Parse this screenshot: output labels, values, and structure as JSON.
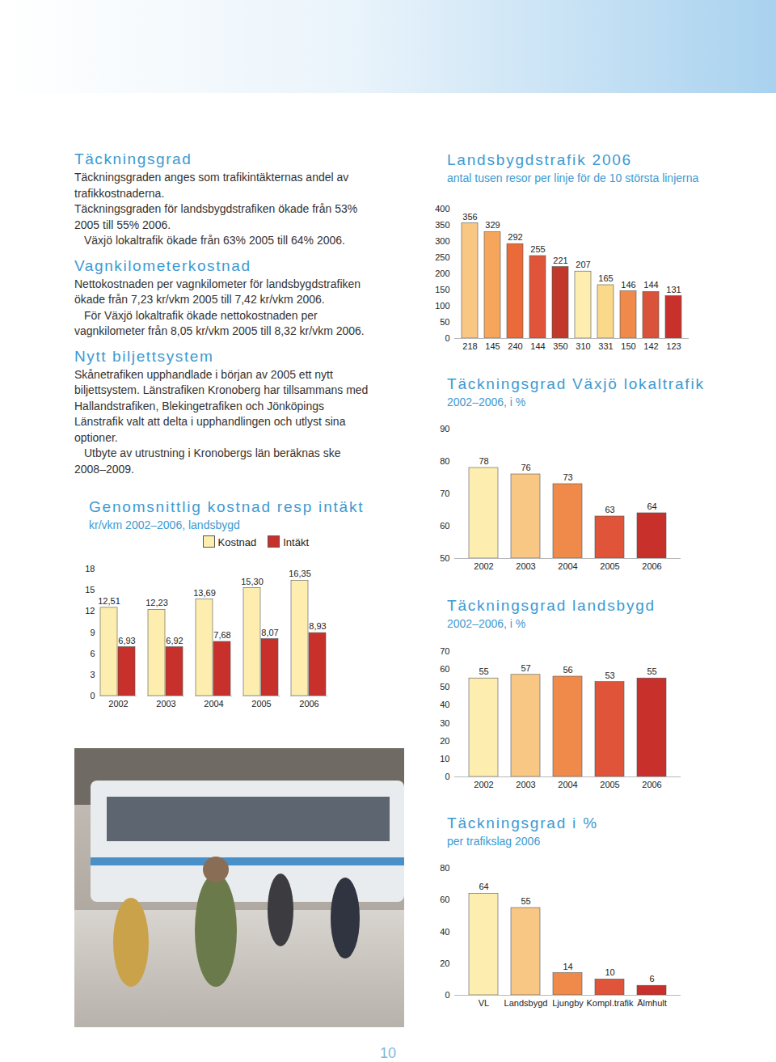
{
  "sections": [
    {
      "heading": "Täckningsgrad",
      "paragraphs": [
        "Täckningsgraden anges som trafikintäkternas andel av trafikkostnaderna.",
        "Täckningsgraden för landsbygdstrafiken ökade från 53% 2005 till 55% 2006.",
        "Växjö lokaltrafik ökade från 63% 2005 till 64% 2006."
      ]
    },
    {
      "heading": "Vagnkilometerkostnad",
      "paragraphs": [
        "Nettokostnaden per vagnkilometer för landsbygdstrafiken ökade från 7,23 kr/vkm 2005 till 7,42 kr/vkm 2006.",
        "För Växjö lokaltrafik ökade nettokostnaden per vagnkilometer från 8,05 kr/vkm 2005 till 8,32 kr/vkm 2006."
      ]
    },
    {
      "heading": "Nytt biljettsystem",
      "paragraphs": [
        "Skånetrafiken upphandlade i början av 2005 ett nytt biljettsystem. Länstrafiken Kronoberg har tillsammans med Hallandstrafiken, Blekingetrafiken och Jönköpings Länstrafik valt att delta i upphandlingen och utlyst sina optioner.",
        "Utbyte av utrustning i Kronobergs län beräknas ske 2008–2009."
      ]
    }
  ],
  "chart_data": [
    {
      "type": "bar",
      "title": "Landsbygdstrafik 2006",
      "subtitle": "antal tusen resor per linje för de 10 största linjerna",
      "categories": [
        "218",
        "145",
        "240",
        "144",
        "350",
        "310",
        "331",
        "150",
        "142",
        "123"
      ],
      "values": [
        356,
        329,
        292,
        255,
        221,
        207,
        165,
        146,
        144,
        131
      ],
      "colors": [
        "#f9c784",
        "#f6a65a",
        "#ea6a3a",
        "#e0553a",
        "#c0392b",
        "#fdeeb0",
        "#fbd98a",
        "#f08a4b",
        "#d9533a",
        "#c8312b"
      ],
      "ylim": [
        0,
        400
      ],
      "yticks": [
        0,
        50,
        100,
        150,
        200,
        250,
        300,
        350,
        400
      ],
      "data_labels": true
    },
    {
      "type": "bar",
      "title": "Täckningsgrad Växjö lokaltrafik",
      "subtitle": "2002–2006, i %",
      "categories": [
        "2002",
        "2003",
        "2004",
        "2005",
        "2006"
      ],
      "values": [
        78,
        76,
        73,
        63,
        64
      ],
      "colors": [
        "#fdeeb0",
        "#f9c784",
        "#f08a4b",
        "#e0553a",
        "#c8312b"
      ],
      "ylim": [
        50,
        90
      ],
      "yticks": [
        50,
        60,
        70,
        80,
        90
      ],
      "data_labels": true
    },
    {
      "type": "bar",
      "title": "Täckningsgrad landsbygd",
      "subtitle": "2002–2006, i %",
      "categories": [
        "2002",
        "2003",
        "2004",
        "2005",
        "2006"
      ],
      "values": [
        55,
        57,
        56,
        53,
        55
      ],
      "colors": [
        "#fdeeb0",
        "#f9c784",
        "#f08a4b",
        "#e0553a",
        "#c8312b"
      ],
      "ylim": [
        0,
        70
      ],
      "yticks": [
        0,
        10,
        20,
        30,
        40,
        50,
        60,
        70
      ],
      "data_labels": true
    },
    {
      "type": "bar",
      "title": "Täckningsgrad i %",
      "subtitle": "per trafikslag 2006",
      "categories": [
        "VL",
        "Landsbygd",
        "Ljungby",
        "Kompl.trafik",
        "Älmhult"
      ],
      "values": [
        64,
        55,
        14,
        10,
        6
      ],
      "colors": [
        "#fdeeb0",
        "#f9c784",
        "#f08a4b",
        "#e0553a",
        "#c8312b"
      ],
      "ylim": [
        0,
        80
      ],
      "yticks": [
        0,
        20,
        40,
        60,
        80
      ],
      "data_labels": true
    },
    {
      "type": "bar",
      "title": "Genomsnittlig kostnad resp intäkt",
      "subtitle": "kr/vkm 2002–2006, landsbygd",
      "categories": [
        "2002",
        "2003",
        "2004",
        "2005",
        "2006"
      ],
      "series": [
        {
          "name": "Kostnad",
          "color": "#fdeeb0",
          "values": [
            12.51,
            12.23,
            13.69,
            15.3,
            16.35
          ],
          "value_labels": [
            "12,51",
            "12,23",
            "13,69",
            "15,30",
            "16,35"
          ]
        },
        {
          "name": "Intäkt",
          "color": "#c8312b",
          "values": [
            6.93,
            6.92,
            7.68,
            8.07,
            8.93
          ],
          "value_labels": [
            "6,93",
            "6,92",
            "7,68",
            "8,07",
            "8,93"
          ]
        }
      ],
      "ylim": [
        0,
        18
      ],
      "yticks": [
        0,
        3,
        6,
        9,
        12,
        15,
        18
      ],
      "data_labels": true,
      "legend": "top"
    }
  ],
  "page_number": "10"
}
